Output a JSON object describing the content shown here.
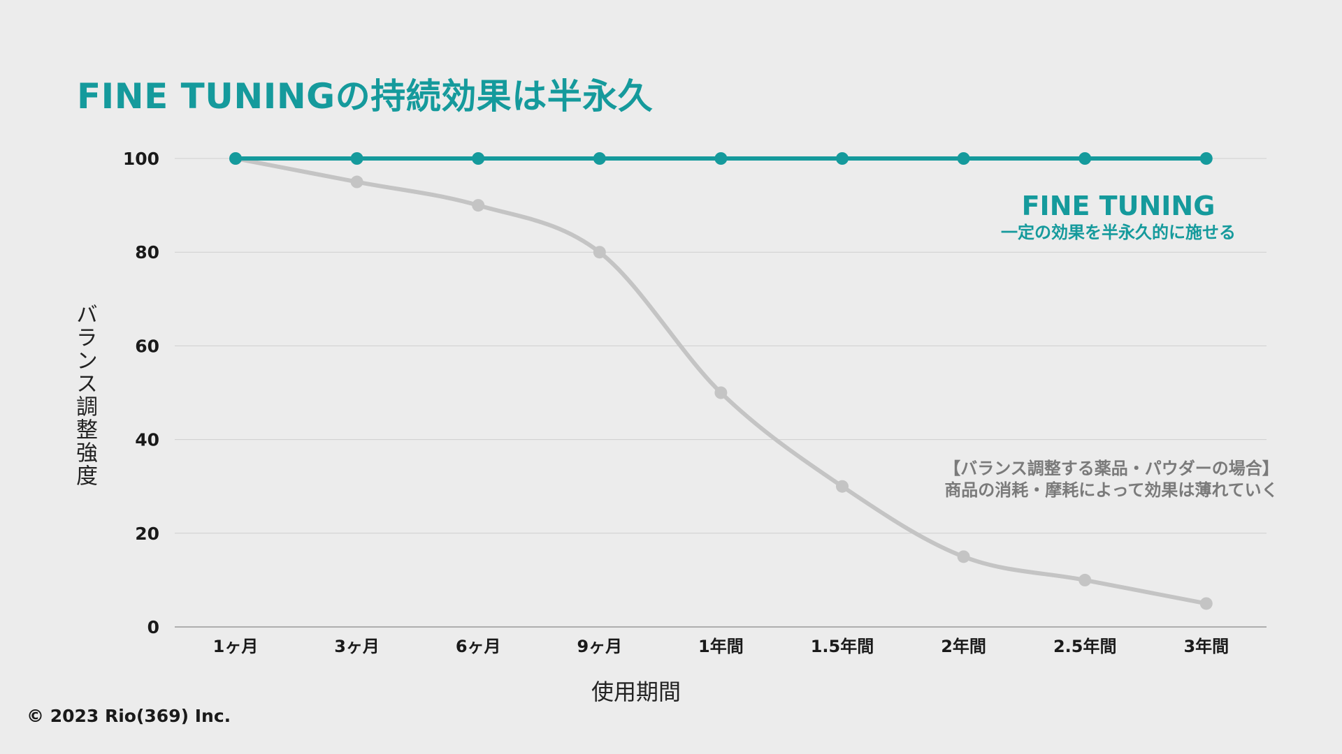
{
  "title": "FINE TUNINGの持続効果は半永久",
  "copyright": "© 2023 Rio(369) Inc.",
  "annotations": {
    "fine_tuning_name": "FINE TUNING",
    "fine_tuning_desc": "一定の効果を半永久的に施せる",
    "chemical_line1": "【バランス調整する薬品・パウダーの場合】",
    "chemical_line2": "商品の消耗・摩耗によって効果は薄れていく"
  },
  "colors": {
    "accent": "#159a9c",
    "secondary": "#c4c4c4",
    "grid": "#cfcfcf",
    "background": "#ececec"
  },
  "chart_data": {
    "type": "line",
    "categories": [
      "1ヶ月",
      "3ヶ月",
      "6ヶ月",
      "9ヶ月",
      "1年間",
      "1.5年間",
      "2年間",
      "2.5年間",
      "3年間"
    ],
    "series": [
      {
        "name": "FINE TUNING",
        "color": "#159a9c",
        "values": [
          100,
          100,
          100,
          100,
          100,
          100,
          100,
          100,
          100
        ]
      },
      {
        "name": "【バランス調整する薬品・パウダーの場合】",
        "color": "#c4c4c4",
        "values": [
          100,
          95,
          90,
          80,
          50,
          30,
          15,
          10,
          5
        ]
      }
    ],
    "title": "FINE TUNINGの持続効果は半永久",
    "xlabel": "使用期間",
    "ylabel": "バランス調整強度",
    "ylim": [
      0,
      100
    ],
    "yticks": [
      0,
      20,
      40,
      60,
      80,
      100
    ],
    "grid": true,
    "legend": "none"
  }
}
